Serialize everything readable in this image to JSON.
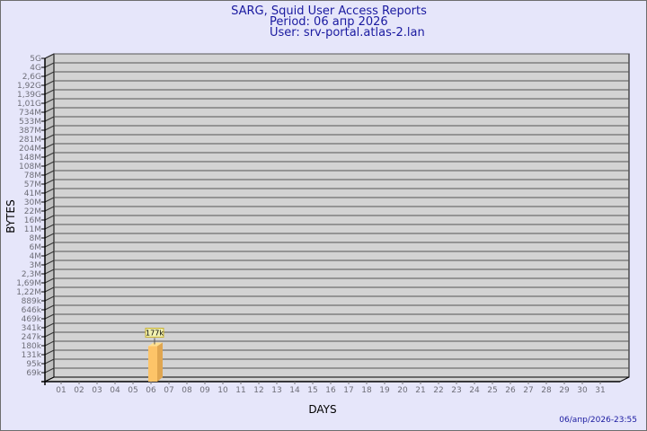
{
  "header": {
    "title": "SARG, Squid User Access Reports",
    "period": "Period: 06 апр 2026",
    "user": "User: srv-portal.atlas-2.lan"
  },
  "footer": {
    "timestamp": "06/апр/2026-23:55"
  },
  "chart_data": {
    "type": "bar",
    "xlabel": "DAYS",
    "ylabel": "BYTES",
    "y_scale": "log",
    "grid": true,
    "y_tick_labels": [
      "5G",
      "4G",
      "2,6G",
      "1,92G",
      "1,39G",
      "1,01G",
      "734M",
      "533M",
      "387M",
      "281M",
      "204M",
      "148M",
      "108M",
      "78M",
      "57M",
      "41M",
      "30M",
      "22M",
      "16M",
      "11M",
      "8M",
      "6M",
      "4M",
      "3M",
      "2,3M",
      "1,69M",
      "1,22M",
      "889k",
      "646k",
      "469k",
      "341k",
      "247k",
      "180k",
      "131k",
      "95k",
      "69k"
    ],
    "categories": [
      "01",
      "02",
      "03",
      "04",
      "05",
      "06",
      "07",
      "08",
      "09",
      "10",
      "11",
      "12",
      "13",
      "14",
      "15",
      "16",
      "17",
      "18",
      "19",
      "20",
      "21",
      "22",
      "23",
      "24",
      "25",
      "26",
      "27",
      "28",
      "29",
      "30",
      "31"
    ],
    "values": [
      null,
      null,
      null,
      null,
      null,
      177000,
      null,
      null,
      null,
      null,
      null,
      null,
      null,
      null,
      null,
      null,
      null,
      null,
      null,
      null,
      null,
      null,
      null,
      null,
      null,
      null,
      null,
      null,
      null,
      null,
      null
    ],
    "data_labels": {
      "06": "177k"
    },
    "colors": {
      "plot_back": "#d3d3d3",
      "plot_side": "#c0c0c0",
      "bar_front": "#fdc468",
      "bar_side": "#e0a650",
      "bar_top": "#ffe090",
      "label_bg": "#f0f0b0",
      "label_border": "#c8b030",
      "title": "#1a1aa0",
      "background": "#e6e6fa"
    }
  }
}
